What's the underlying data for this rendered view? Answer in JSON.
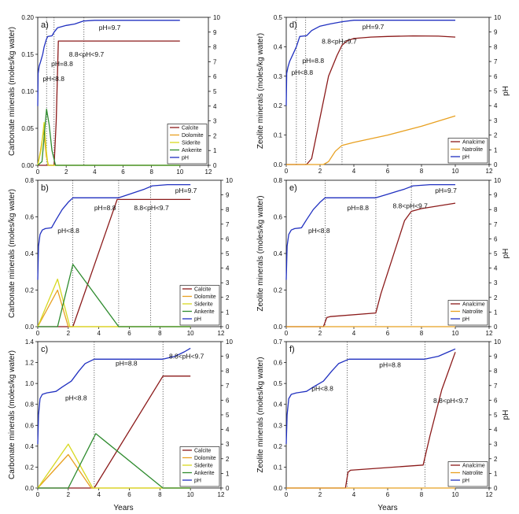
{
  "figure": {
    "x_label": "Years"
  },
  "chart_data": [
    {
      "type": "line",
      "panel_label": "a)",
      "ylabel": "Carbonate minerals (moles/kg water)",
      "ylabel_right": "",
      "xlim": [
        0,
        12
      ],
      "ylim": [
        0,
        0.2
      ],
      "ylim_right": [
        0,
        10
      ],
      "xticks": [
        0,
        2,
        4,
        6,
        8,
        10,
        12
      ],
      "yticks": [
        0,
        0.05,
        0.1,
        0.15,
        0.2
      ],
      "yticklabels": [
        "0.00",
        "0.05",
        "0.10",
        "0.15",
        "0.20"
      ],
      "yticks_right": [
        0,
        1,
        2,
        3,
        4,
        5,
        6,
        7,
        8,
        9,
        10
      ],
      "series": [
        {
          "name": "Calcite",
          "color": "#8B1a1a",
          "axis": "left",
          "x": [
            0,
            1.15,
            1.3,
            1.45,
            10
          ],
          "y": [
            0,
            0,
            0.06,
            0.168,
            0.168
          ]
        },
        {
          "name": "Dolomite",
          "color": "#E8A020",
          "axis": "left",
          "x": [
            0,
            0.2,
            0.42,
            0.6,
            0.75,
            10
          ],
          "y": [
            0,
            0.02,
            0.048,
            0.012,
            0,
            0
          ]
        },
        {
          "name": "Siderite",
          "color": "#D8D820",
          "axis": "left",
          "x": [
            0,
            0.25,
            0.45,
            0.6,
            0.72,
            10
          ],
          "y": [
            0,
            0.022,
            0.058,
            0.02,
            0,
            0
          ]
        },
        {
          "name": "Ankerite",
          "color": "#2E8B2E",
          "axis": "left",
          "x": [
            0,
            0.3,
            0.62,
            0.8,
            1.0,
            1.25,
            10
          ],
          "y": [
            0,
            0.005,
            0.076,
            0.055,
            0.02,
            0,
            0
          ]
        },
        {
          "name": "pH",
          "color": "#2030C0",
          "axis": "right",
          "x": [
            0,
            0.03,
            0.1,
            0.2,
            0.35,
            0.45,
            0.6,
            0.7,
            1.0,
            1.15,
            1.4,
            2.0,
            2.6,
            3.2,
            4.0,
            10
          ],
          "y": [
            4.0,
            6.2,
            6.7,
            7.0,
            7.5,
            8.0,
            8.5,
            8.7,
            8.75,
            9.0,
            9.3,
            9.45,
            9.55,
            9.75,
            9.8,
            9.8
          ]
        }
      ],
      "vlines": [
        0.62,
        1.15,
        3.25
      ],
      "annotations": [
        {
          "text": "pH=9.7",
          "x": 4.3,
          "yr": 9.15
        },
        {
          "text": "8.8<pH<9.7",
          "x": 2.2,
          "yr": 7.35
        },
        {
          "text": "pH=8.8",
          "x": 0.95,
          "yr": 6.7
        },
        {
          "text": "pH<8.8",
          "x": 0.35,
          "yr": 5.7
        }
      ],
      "legend": {
        "position": "bottom-right",
        "entries": [
          "Calcite",
          "Dolomite",
          "Siderite",
          "Ankerite",
          "pH"
        ]
      }
    },
    {
      "type": "line",
      "panel_label": "d)",
      "ylabel": "Zeolite minerals (moles/kg water)",
      "ylabel_right": "pH",
      "xlim": [
        0,
        12
      ],
      "ylim": [
        0,
        0.5
      ],
      "ylim_right": [
        0,
        10
      ],
      "xticks": [
        0,
        2,
        4,
        6,
        8,
        10,
        12
      ],
      "yticks": [
        0,
        0.1,
        0.2,
        0.3,
        0.4,
        0.5
      ],
      "yticklabels": [
        "0.0",
        "0.1",
        "0.2",
        "0.3",
        "0.4",
        "0.5"
      ],
      "yticks_right": [
        0,
        1,
        2,
        3,
        4,
        5,
        6,
        7,
        8,
        9,
        10
      ],
      "series": [
        {
          "name": "Analcime",
          "color": "#8B1a1a",
          "axis": "left",
          "x": [
            0,
            1.2,
            1.5,
            2.5,
            3.0,
            3.3,
            3.6,
            4.0,
            5.0,
            6.0,
            7.5,
            9.0,
            10
          ],
          "y": [
            0,
            0,
            0.02,
            0.3,
            0.37,
            0.405,
            0.42,
            0.428,
            0.433,
            0.435,
            0.437,
            0.436,
            0.433
          ]
        },
        {
          "name": "Natrolite",
          "color": "#E8A020",
          "axis": "left",
          "x": [
            0,
            2.2,
            2.5,
            2.9,
            3.3,
            4.0,
            6.0,
            8.0,
            10
          ],
          "y": [
            0,
            0,
            0.01,
            0.045,
            0.065,
            0.075,
            0.1,
            0.13,
            0.165
          ]
        },
        {
          "name": "pH",
          "color": "#2030C0",
          "axis": "right",
          "x": [
            0,
            0.03,
            0.1,
            0.2,
            0.4,
            0.6,
            0.8,
            1.2,
            1.5,
            2.0,
            2.6,
            3.3,
            4.0,
            10
          ],
          "y": [
            4.0,
            6.2,
            6.6,
            7.0,
            7.5,
            8.0,
            8.7,
            8.75,
            9.1,
            9.4,
            9.55,
            9.7,
            9.8,
            9.8
          ]
        }
      ],
      "vlines": [
        0.6,
        1.15,
        3.3
      ],
      "annotations": [
        {
          "text": "pH=9.7",
          "x": 4.5,
          "yr": 9.2
        },
        {
          "text": "8.8<pH<9.7",
          "x": 2.1,
          "yr": 8.2
        },
        {
          "text": "pH=8.8",
          "x": 0.95,
          "yr": 6.9
        },
        {
          "text": "pH<8.8",
          "x": 0.3,
          "yr": 6.1
        }
      ],
      "legend": {
        "position": "bottom-right",
        "entries": [
          "Analcime",
          "Natrolite",
          "pH"
        ]
      }
    },
    {
      "type": "line",
      "panel_label": "b)",
      "ylabel": "Carbonate minerals (moles/kg water)",
      "ylabel_right": "",
      "xlim": [
        0,
        12
      ],
      "ylim": [
        0,
        0.8
      ],
      "ylim_right": [
        0,
        10
      ],
      "xticks": [
        0,
        2,
        4,
        6,
        8,
        10,
        12
      ],
      "yticks": [
        0,
        0.2,
        0.4,
        0.6,
        0.8
      ],
      "yticklabels": [
        "0.0",
        "0.2",
        "0.4",
        "0.6",
        "0.8"
      ],
      "yticks_right": [
        0,
        1,
        2,
        3,
        4,
        5,
        6,
        7,
        8,
        9,
        10
      ],
      "series": [
        {
          "name": "Calcite",
          "color": "#8B1a1a",
          "axis": "left",
          "x": [
            0,
            2.3,
            5.2,
            10
          ],
          "y": [
            0,
            0,
            0.695,
            0.695
          ]
        },
        {
          "name": "Dolomite",
          "color": "#E8A020",
          "axis": "left",
          "x": [
            0,
            1.3,
            2.0,
            10
          ],
          "y": [
            0,
            0.2,
            0,
            0
          ]
        },
        {
          "name": "Siderite",
          "color": "#D8D820",
          "axis": "left",
          "x": [
            0,
            1.3,
            2.1,
            10
          ],
          "y": [
            0,
            0.26,
            0,
            0
          ]
        },
        {
          "name": "Ankerite",
          "color": "#2E8B2E",
          "axis": "left",
          "x": [
            0,
            1.3,
            2.3,
            5.3,
            10
          ],
          "y": [
            0,
            0,
            0.34,
            0,
            0
          ]
        },
        {
          "name": "pH",
          "color": "#2030C0",
          "axis": "right",
          "x": [
            0,
            0.05,
            0.15,
            0.3,
            0.5,
            0.9,
            1.2,
            1.6,
            2.0,
            2.3,
            5.3,
            6.0,
            7.0,
            7.5,
            8.5,
            10
          ],
          "y": [
            3.2,
            5.5,
            6.3,
            6.6,
            6.7,
            6.75,
            7.3,
            8.0,
            8.5,
            8.8,
            8.8,
            9.05,
            9.4,
            9.62,
            9.7,
            9.7
          ]
        }
      ],
      "vlines": [
        2.3,
        5.3,
        7.4
      ],
      "annotations": [
        {
          "text": "pH=9.7",
          "x": 9.0,
          "yr": 9.15
        },
        {
          "text": "8.8<pH<9.7",
          "x": 6.3,
          "yr": 7.95
        },
        {
          "text": "pH=8.8",
          "x": 3.7,
          "yr": 7.95
        },
        {
          "text": "pH<8.8",
          "x": 1.3,
          "yr": 6.4
        }
      ],
      "legend": {
        "position": "bottom-right",
        "entries": [
          "Calcite",
          "Dolomite",
          "Siderite",
          "Ankerite",
          "pH"
        ]
      }
    },
    {
      "type": "line",
      "panel_label": "e)",
      "ylabel": "Zeolite minerals (moles/kg water)",
      "ylabel_right": "pH",
      "xlim": [
        0,
        12
      ],
      "ylim": [
        0,
        0.8
      ],
      "ylim_right": [
        0,
        10
      ],
      "xticks": [
        0,
        2,
        4,
        6,
        8,
        10,
        12
      ],
      "yticks": [
        0,
        0.2,
        0.4,
        0.6,
        0.8
      ],
      "yticklabels": [
        "0.0",
        "0.2",
        "0.4",
        "0.6",
        "0.8"
      ],
      "yticks_right": [
        0,
        1,
        2,
        3,
        4,
        5,
        6,
        7,
        8,
        9,
        10
      ],
      "series": [
        {
          "name": "Analcime",
          "color": "#8B1a1a",
          "axis": "left",
          "x": [
            0,
            2.2,
            2.4,
            2.6,
            5.3,
            5.6,
            7.0,
            7.4,
            8.0,
            10
          ],
          "y": [
            0,
            0,
            0.05,
            0.055,
            0.075,
            0.18,
            0.58,
            0.63,
            0.645,
            0.675
          ]
        },
        {
          "name": "Natrolite",
          "color": "#E8A020",
          "axis": "left",
          "x": [
            0,
            10
          ],
          "y": [
            0,
            0
          ]
        },
        {
          "name": "pH",
          "color": "#2030C0",
          "axis": "right",
          "x": [
            0,
            0.05,
            0.15,
            0.3,
            0.5,
            0.9,
            1.2,
            1.6,
            2.0,
            2.3,
            5.3,
            6.0,
            7.0,
            7.5,
            8.5,
            10
          ],
          "y": [
            3.2,
            5.5,
            6.3,
            6.6,
            6.7,
            6.75,
            7.3,
            8.0,
            8.5,
            8.8,
            8.8,
            9.05,
            9.4,
            9.62,
            9.7,
            9.7
          ]
        }
      ],
      "vlines": [
        2.3,
        5.3,
        7.4
      ],
      "annotations": [
        {
          "text": "pH=9.7",
          "x": 8.8,
          "yr": 9.15
        },
        {
          "text": "8.8<pH<9.7",
          "x": 6.3,
          "yr": 8.1
        },
        {
          "text": "pH=8.8",
          "x": 3.6,
          "yr": 7.95
        },
        {
          "text": "pH<8.8",
          "x": 1.3,
          "yr": 6.4
        }
      ],
      "legend": {
        "position": "bottom-right",
        "entries": [
          "Analcime",
          "Natrolite",
          "pH"
        ]
      }
    },
    {
      "type": "line",
      "panel_label": "c)",
      "ylabel": "Carbonate minerals (moles/kg water)",
      "ylabel_right": "",
      "xlim": [
        0,
        12
      ],
      "ylim": [
        0,
        1.4
      ],
      "ylim_right": [
        0,
        10
      ],
      "xticks": [
        0,
        2,
        4,
        6,
        8,
        10,
        12
      ],
      "yticks": [
        0,
        0.2,
        0.4,
        0.6,
        0.8,
        1.0,
        1.2,
        1.4
      ],
      "yticklabels": [
        "0.0",
        "0.2",
        "0.4",
        "0.6",
        "0.8",
        "1.0",
        "1.2",
        "1.4"
      ],
      "yticks_right": [
        0,
        1,
        2,
        3,
        4,
        5,
        6,
        7,
        8,
        9,
        10
      ],
      "series": [
        {
          "name": "Calcite",
          "color": "#8B1a1a",
          "axis": "left",
          "x": [
            0,
            3.7,
            8.2,
            10
          ],
          "y": [
            0,
            0,
            1.07,
            1.07
          ]
        },
        {
          "name": "Dolomite",
          "color": "#E8A020",
          "axis": "left",
          "x": [
            0,
            2.0,
            3.5,
            10
          ],
          "y": [
            0,
            0.32,
            0,
            0
          ]
        },
        {
          "name": "Siderite",
          "color": "#D8D820",
          "axis": "left",
          "x": [
            0,
            2.0,
            3.6,
            10
          ],
          "y": [
            0,
            0.42,
            0,
            0
          ]
        },
        {
          "name": "Ankerite",
          "color": "#2E8B2E",
          "axis": "left",
          "x": [
            0,
            2.0,
            3.8,
            8.2,
            10
          ],
          "y": [
            0,
            0,
            0.52,
            0,
            0
          ]
        },
        {
          "name": "pH",
          "color": "#2030C0",
          "axis": "right",
          "x": [
            0,
            0.05,
            0.15,
            0.3,
            0.6,
            1.2,
            1.6,
            2.2,
            2.7,
            3.1,
            3.7,
            8.2,
            9.0,
            9.6,
            10
          ],
          "y": [
            3.0,
            5.0,
            6.1,
            6.4,
            6.5,
            6.6,
            6.9,
            7.3,
            8.0,
            8.5,
            8.8,
            8.8,
            9.0,
            9.3,
            9.55
          ]
        }
      ],
      "vlines": [
        3.7,
        8.2
      ],
      "annotations": [
        {
          "text": "pH=8.8",
          "x": 5.1,
          "yr": 8.35
        },
        {
          "text": "8.8<pH<9.7",
          "x": 8.6,
          "yr": 8.85
        },
        {
          "text": "pH<8.8",
          "x": 1.8,
          "yr": 6.0
        }
      ],
      "legend": {
        "position": "bottom-right",
        "entries": [
          "Calcite",
          "Dolomite",
          "Siderite",
          "Ankerite",
          "pH"
        ]
      }
    },
    {
      "type": "line",
      "panel_label": "f)",
      "ylabel": "Zeolite minerals (moles/kg water)",
      "ylabel_right": "pH",
      "xlim": [
        0,
        12
      ],
      "ylim": [
        0,
        0.7
      ],
      "ylim_right": [
        0,
        10
      ],
      "xticks": [
        0,
        2,
        4,
        6,
        8,
        10,
        12
      ],
      "yticks": [
        0,
        0.1,
        0.2,
        0.3,
        0.4,
        0.5,
        0.6,
        0.7
      ],
      "yticklabels": [
        "0.0",
        "0.1",
        "0.2",
        "0.3",
        "0.4",
        "0.5",
        "0.6",
        "0.7"
      ],
      "yticks_right": [
        0,
        1,
        2,
        3,
        4,
        5,
        6,
        7,
        8,
        9,
        10
      ],
      "series": [
        {
          "name": "Analcime",
          "color": "#8B1a1a",
          "axis": "left",
          "x": [
            0,
            3.5,
            3.65,
            3.8,
            8.1,
            8.5,
            9.2,
            10
          ],
          "y": [
            0,
            0,
            0.075,
            0.085,
            0.11,
            0.25,
            0.47,
            0.65
          ]
        },
        {
          "name": "Natrolite",
          "color": "#E8A020",
          "axis": "left",
          "x": [
            0,
            10
          ],
          "y": [
            0,
            0
          ]
        },
        {
          "name": "pH",
          "color": "#2030C0",
          "axis": "right",
          "x": [
            0,
            0.05,
            0.15,
            0.3,
            0.6,
            1.2,
            1.6,
            2.2,
            2.7,
            3.1,
            3.7,
            8.2,
            9.0,
            9.6,
            10
          ],
          "y": [
            3.0,
            5.0,
            6.1,
            6.4,
            6.5,
            6.6,
            6.9,
            7.3,
            8.0,
            8.5,
            8.8,
            8.8,
            9.0,
            9.3,
            9.5
          ]
        }
      ],
      "vlines": [
        3.6,
        8.2
      ],
      "annotations": [
        {
          "text": "pH=8.8",
          "x": 5.5,
          "yr": 8.25
        },
        {
          "text": "8.8<pH<9.7",
          "x": 8.7,
          "yr": 5.8
        },
        {
          "text": "pH<8.8",
          "x": 1.5,
          "yr": 6.65
        }
      ],
      "legend": {
        "position": "bottom-right",
        "entries": [
          "Analcime",
          "Natrolite",
          "pH"
        ]
      }
    }
  ]
}
